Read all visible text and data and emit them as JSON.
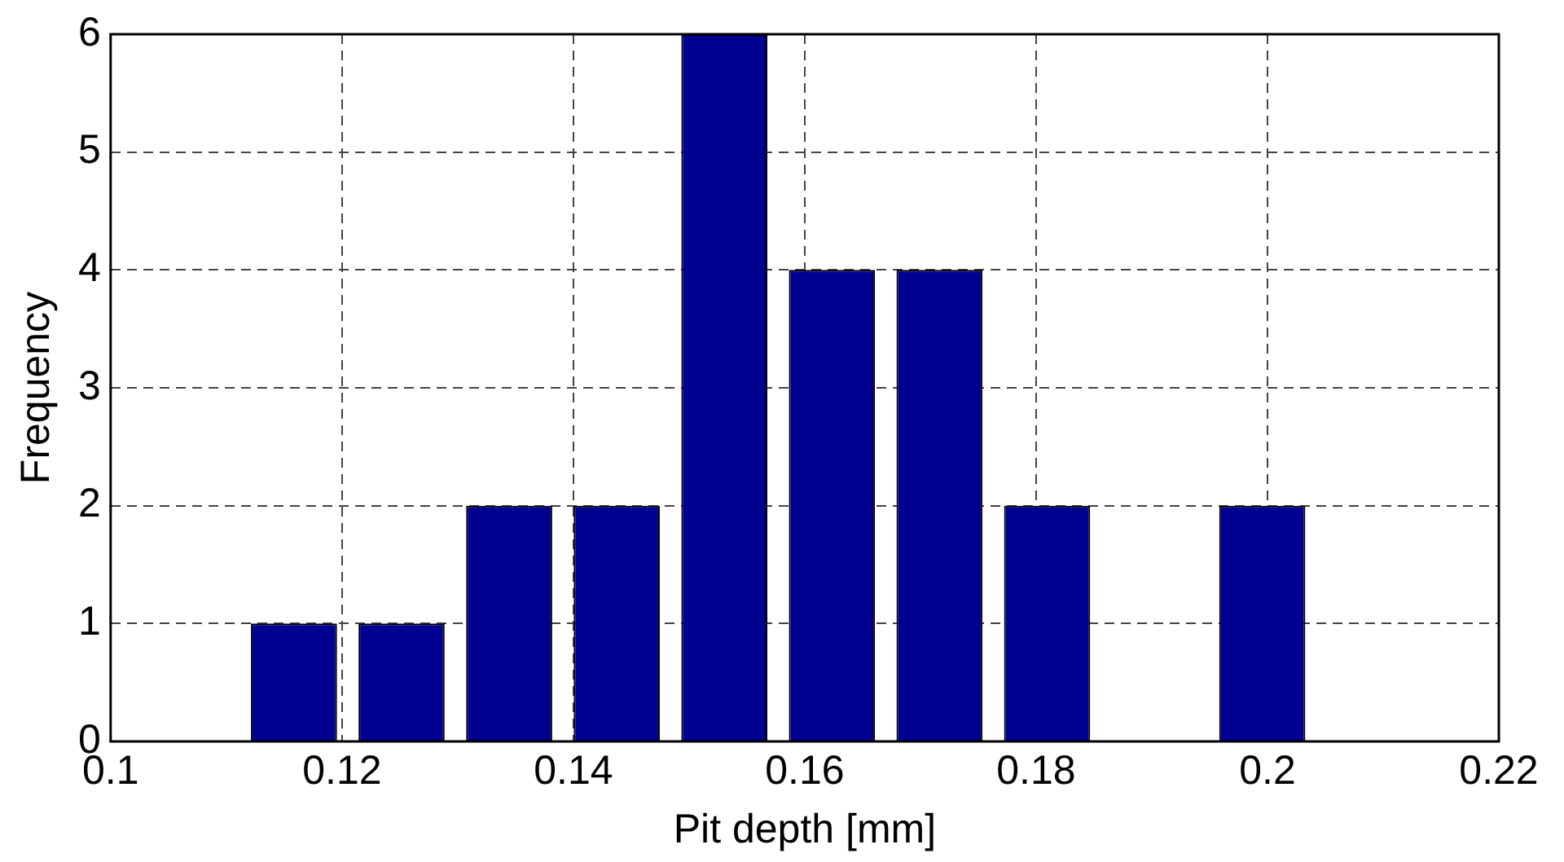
{
  "chart_data": {
    "type": "histogram",
    "xlabel": "Pit depth [mm]",
    "ylabel": "Frequency",
    "bins": [
      0.1112,
      0.1205,
      0.1298,
      0.1391,
      0.1484,
      0.1577,
      0.167,
      0.1763,
      0.1856,
      0.1949,
      0.2042
    ],
    "values": [
      1,
      1,
      2,
      2,
      6,
      4,
      4,
      2,
      0,
      2
    ],
    "color": "#000090",
    "xlim": [
      0.1,
      0.22
    ],
    "xticks": [
      0.1,
      0.12,
      0.14,
      0.16,
      0.18,
      0.2,
      0.22
    ],
    "ylim": [
      0,
      6
    ],
    "yticks": [
      0,
      1,
      2,
      3,
      4,
      5,
      6
    ],
    "grid": true
  }
}
